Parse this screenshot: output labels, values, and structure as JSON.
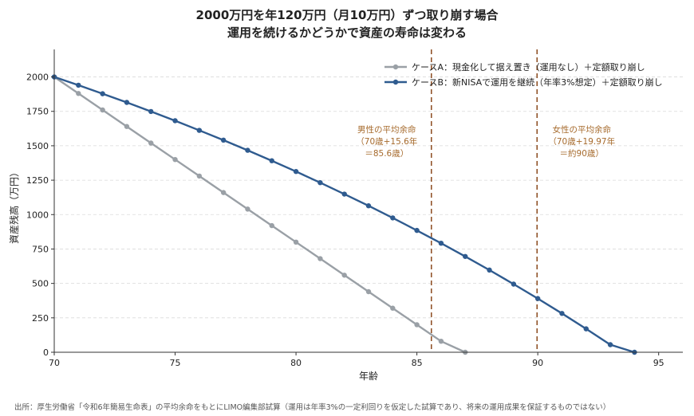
{
  "chart_data": {
    "type": "line",
    "title": "2000万円を年120万円（月10万円）ずつ取り崩す場合",
    "subtitle": "運用を続けるかどうかで資産の寿命は変わる",
    "xlabel": "年齢",
    "ylabel": "資産残高（万円）",
    "xlim": [
      70,
      96
    ],
    "ylim": [
      0,
      2200
    ],
    "xticks": [
      70,
      75,
      80,
      85,
      90,
      95
    ],
    "yticks": [
      0,
      250,
      500,
      750,
      1000,
      1250,
      1500,
      1750,
      2000
    ],
    "grid": "horizontal-dashed",
    "legend_position": "top-right",
    "series": [
      {
        "name": "ケースA：現金化して据え置き（運用なし）＋定額取り崩し",
        "color": "#9aa0a6",
        "x": [
          70,
          71,
          72,
          73,
          74,
          75,
          76,
          77,
          78,
          79,
          80,
          81,
          82,
          83,
          84,
          85,
          86,
          87
        ],
        "y": [
          2000,
          1880,
          1760,
          1640,
          1520,
          1400,
          1280,
          1160,
          1040,
          920,
          800,
          680,
          560,
          440,
          320,
          200,
          80,
          0
        ]
      },
      {
        "name": "ケースB：新NISAで運用を継続（年率3%想定）＋定額取り崩し",
        "color": "#2f5b8f",
        "x": [
          70,
          71,
          72,
          73,
          74,
          75,
          76,
          77,
          78,
          79,
          80,
          81,
          82,
          83,
          84,
          85,
          86,
          87,
          88,
          89,
          90,
          91,
          92,
          93,
          94
        ],
        "y": [
          2000,
          1940,
          1878,
          1815,
          1749,
          1682,
          1612,
          1541,
          1467,
          1391,
          1313,
          1232,
          1149,
          1064,
          976,
          885,
          792,
          696,
          597,
          495,
          390,
          282,
          170,
          55,
          0
        ]
      }
    ],
    "vlines": [
      {
        "x": 85.6,
        "color": "#8b4a1e",
        "label": [
          "男性の平均余命",
          "（70歳+15.6年",
          "＝85.6歳）"
        ]
      },
      {
        "x": 89.97,
        "color": "#8b4a1e",
        "label": [
          "女性の平均余命",
          "（70歳+19.97年",
          "＝約90歳）"
        ]
      }
    ],
    "source": "出所：厚生労働省「令和6年簡易生命表」の平均余命をもとにLIMO編集部試算（運用は年率3%の一定利回りを仮定した試算であり、将来の運用成果を保証するものではない）"
  }
}
